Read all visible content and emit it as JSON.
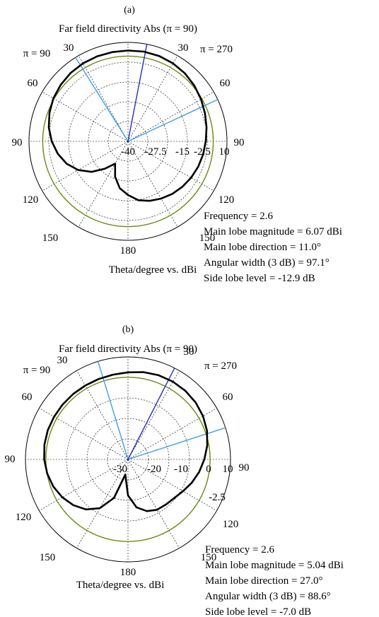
{
  "colors": {
    "pattern": "#000000",
    "beam_line": "#3f9fe8",
    "main_lobe_line": "#2030c0",
    "ref_circle": "#6a8a10",
    "grid": "#000000"
  },
  "chart_data": [
    {
      "type": "polar-line",
      "panel_label": "(a)",
      "title": "Far field directivity Abs (π = 90)",
      "left_label": "π  = 90",
      "right_label": "π = 270",
      "angle_labels": [
        "30",
        "60",
        "90",
        "120",
        "150",
        "180",
        "150",
        "120",
        "90",
        "60",
        "30"
      ],
      "radial_tick_labels": [
        "-40",
        "-27.5",
        "-15",
        "-2.5",
        "10"
      ],
      "radial_range": [
        -40,
        10
      ],
      "xlabel": "Theta/degree vs. dBi",
      "info": [
        "Frequency = 2.6",
        "Main lobe magnitude = 6.07 dBi",
        "Main lobe direction = 11.0°",
        "Angular width (3 dB) = 97.1°",
        "Side lobe level = -12.9 dB"
      ],
      "main_lobe_direction_deg": 11.0,
      "beam_edges_deg": [
        -32,
        65
      ],
      "reference_level_dbi": 3.07,
      "theta_deg": [
        0,
        10,
        20,
        30,
        40,
        50,
        60,
        70,
        80,
        90,
        100,
        110,
        120,
        130,
        140,
        150,
        160,
        170,
        180,
        190,
        200,
        210,
        220,
        230,
        240,
        250,
        260,
        270,
        280,
        290,
        300,
        310,
        320,
        330,
        340,
        350,
        360
      ],
      "directivity_dbi": [
        5.9,
        6.06,
        5.92,
        5.5,
        4.8,
        3.8,
        2.6,
        1.4,
        0.3,
        -0.7,
        -1.5,
        -2.3,
        -3.2,
        -4.2,
        -5.3,
        -6.6,
        -8.0,
        -9.8,
        -12.9,
        -16.0,
        -21.0,
        -27.0,
        -22.0,
        -16.0,
        -11.0,
        -7.0,
        -4.0,
        -1.5,
        0.6,
        2.2,
        3.5,
        4.4,
        5.1,
        5.5,
        5.7,
        5.82,
        5.9
      ]
    },
    {
      "type": "polar-line",
      "panel_label": "(b)",
      "title": "Far field directivity Abs (π  = 90)",
      "left_label": "π  = 90",
      "right_label": "π = 270",
      "angle_labels": [
        "30",
        "60",
        "90",
        "120",
        "150",
        "180",
        "150",
        "120",
        "90",
        "60",
        "30"
      ],
      "radial_tick_labels": [
        "-30",
        "-20",
        "-10",
        "0",
        "10",
        "-2.5"
      ],
      "radial_range": [
        -30,
        10
      ],
      "xlabel": "Theta/degree vs. dBi",
      "info": [
        "Frequency = 2.6",
        "Main lobe magnitude = 5.04 dBi",
        "Main lobe direction = 27.0°",
        "Angular width (3 dB) = 88.6°",
        "Side lobe level = -7.0 dB"
      ],
      "main_lobe_direction_deg": 27.0,
      "beam_edges_deg": [
        -17,
        72
      ],
      "reference_level_dbi": 2.04,
      "theta_deg": [
        0,
        10,
        20,
        30,
        40,
        50,
        60,
        70,
        80,
        90,
        100,
        110,
        120,
        130,
        140,
        150,
        160,
        170,
        180,
        190,
        200,
        210,
        220,
        230,
        240,
        250,
        260,
        270,
        280,
        290,
        300,
        310,
        320,
        330,
        340,
        350,
        360
      ],
      "directivity_dbi": [
        4.0,
        4.6,
        4.95,
        5.04,
        4.9,
        4.5,
        3.8,
        2.8,
        1.4,
        -0.2,
        -1.8,
        -3.5,
        -5.2,
        -6.5,
        -7.0,
        -7.3,
        -8.5,
        -11.0,
        -16.0,
        -24.0,
        -14.0,
        -8.0,
        -4.5,
        -2.2,
        -0.4,
        1.0,
        2.0,
        2.7,
        3.1,
        3.3,
        3.3,
        3.3,
        3.3,
        3.3,
        3.4,
        3.6,
        4.0
      ]
    }
  ]
}
